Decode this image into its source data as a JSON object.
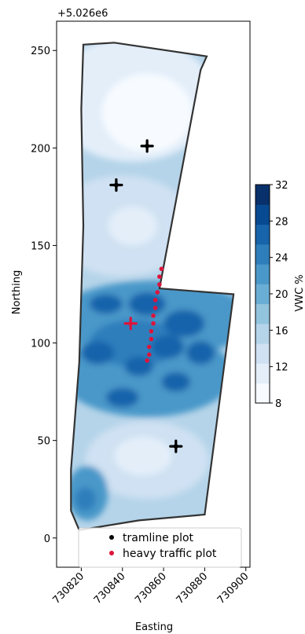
{
  "chart_data": {
    "type": "contour-map",
    "offset_label": "+5.026e6",
    "xlabel": "Easting",
    "ylabel": "Northing",
    "xlim": [
      730808,
      730902
    ],
    "ylim": [
      -15,
      265
    ],
    "x_ticks": [
      730820,
      730840,
      730860,
      730880,
      730900
    ],
    "x_tick_labels": [
      "730820",
      "730840",
      "730860",
      "730880",
      "730900"
    ],
    "y_ticks": [
      0,
      50,
      100,
      150,
      200,
      250
    ],
    "y_tick_labels": [
      "0",
      "50",
      "100",
      "150",
      "200",
      "250"
    ],
    "colorbar": {
      "label": "VWC %",
      "min": 8,
      "max": 32,
      "ticks": [
        8,
        12,
        16,
        20,
        24,
        28,
        32
      ],
      "tick_labels": [
        "8",
        "12",
        "16",
        "20",
        "24",
        "28",
        "32"
      ],
      "colors": [
        "#f7fbff",
        "#e3eef9",
        "#cfe1f2",
        "#b5d4e9",
        "#93c4de",
        "#6aaed6",
        "#4a98c9",
        "#2e7ebc",
        "#1764ab",
        "#084a91",
        "#08306b"
      ]
    },
    "field_boundary": [
      [
        730821,
        253
      ],
      [
        730836,
        254
      ],
      [
        730881,
        247
      ],
      [
        730878,
        240
      ],
      [
        730858,
        128
      ],
      [
        730894,
        125
      ],
      [
        730880,
        12
      ],
      [
        730848,
        9
      ],
      [
        730819,
        4
      ],
      [
        730815,
        14
      ],
      [
        730815,
        35
      ],
      [
        730819,
        90
      ],
      [
        730821,
        160
      ],
      [
        730820,
        220
      ]
    ],
    "series": [
      {
        "name": "tramline plot",
        "color": "#000000",
        "marker": "plus",
        "points": [
          [
            730852,
            201
          ],
          [
            730837,
            181
          ],
          [
            730866,
            47
          ]
        ]
      },
      {
        "name": "heavy traffic plot",
        "color": "#dc143c",
        "marker": "dot",
        "points": [
          [
            730859,
            138
          ],
          [
            730858,
            134
          ],
          [
            730858,
            130
          ],
          [
            730857,
            126
          ],
          [
            730856,
            122
          ],
          [
            730856,
            118
          ],
          [
            730855,
            114
          ],
          [
            730855,
            110
          ],
          [
            730854,
            106
          ],
          [
            730854,
            102
          ],
          [
            730853,
            98
          ],
          [
            730853,
            94
          ],
          [
            730852,
            91
          ],
          [
            730844,
            110
          ]
        ]
      }
    ],
    "zones": [
      {
        "x": 730845,
        "y": 225,
        "rx": 40,
        "ry": 32,
        "level": 1
      },
      {
        "x": 730852,
        "y": 218,
        "rx": 22,
        "ry": 20,
        "level": 0
      },
      {
        "x": 730840,
        "y": 160,
        "rx": 35,
        "ry": 26,
        "level": 2
      },
      {
        "x": 730845,
        "y": 160,
        "rx": 12,
        "ry": 10,
        "level": 1
      },
      {
        "x": 730855,
        "y": 112,
        "rx": 48,
        "ry": 20,
        "level": 6
      },
      {
        "x": 730852,
        "y": 84,
        "rx": 42,
        "ry": 22,
        "level": 6
      },
      {
        "x": 730846,
        "y": 100,
        "rx": 22,
        "ry": 12,
        "level": 7
      },
      {
        "x": 730832,
        "y": 120,
        "rx": 8,
        "ry": 5,
        "level": 8
      },
      {
        "x": 730870,
        "y": 110,
        "rx": 10,
        "ry": 7,
        "level": 8
      },
      {
        "x": 730852,
        "y": 120,
        "rx": 9,
        "ry": 6,
        "level": 8
      },
      {
        "x": 730862,
        "y": 98,
        "rx": 8,
        "ry": 6,
        "level": 8
      },
      {
        "x": 730828,
        "y": 95,
        "rx": 8,
        "ry": 6,
        "level": 8
      },
      {
        "x": 730840,
        "y": 72,
        "rx": 8,
        "ry": 5,
        "level": 8
      },
      {
        "x": 730866,
        "y": 80,
        "rx": 7,
        "ry": 5,
        "level": 8
      },
      {
        "x": 730848,
        "y": 88,
        "rx": 7,
        "ry": 5,
        "level": 8
      },
      {
        "x": 730878,
        "y": 95,
        "rx": 7,
        "ry": 6,
        "level": 8
      },
      {
        "x": 730852,
        "y": 40,
        "rx": 30,
        "ry": 20,
        "level": 2
      },
      {
        "x": 730850,
        "y": 42,
        "rx": 14,
        "ry": 10,
        "level": 1
      },
      {
        "x": 730823,
        "y": 23,
        "rx": 10,
        "ry": 14,
        "level": 6
      },
      {
        "x": 730822,
        "y": 20,
        "rx": 5,
        "ry": 6,
        "level": 7
      }
    ]
  }
}
